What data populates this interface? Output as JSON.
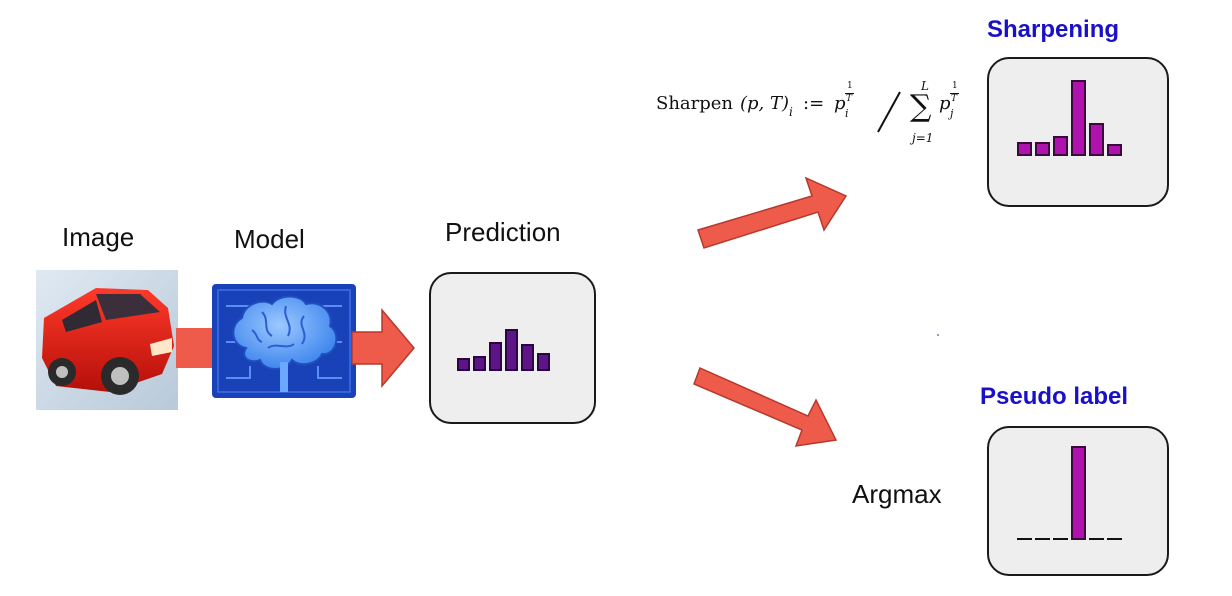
{
  "labels": {
    "image": "Image",
    "model": "Model",
    "prediction": "Prediction",
    "sharpening": "Sharpening",
    "pseudo_label": "Pseudo label",
    "argmax": "Argmax"
  },
  "formula": {
    "name": "Sharpen",
    "args": "(p, T)",
    "sub_i": "i",
    "assign": ":=",
    "p_var": "p",
    "exp_num": "1",
    "exp_den": "T",
    "slash": "/",
    "sum_sign": "∑",
    "sum_upper": "L",
    "sum_lower": "j=1",
    "sub_j": "j"
  },
  "colors": {
    "title_blue": "#1a10c8",
    "arrow_fill": "#ee5b4b",
    "arrow_stroke": "#b5392d",
    "bar_prediction_fill": "#5e1488",
    "bar_prediction_stroke": "#2a0640",
    "bar_sharp_fill": "#b012b0",
    "bar_sharp_stroke": "#3a0a3a",
    "card_bg": "#eeeeee",
    "model_bg": "#1942b8",
    "brain": "#6aa9ff"
  },
  "icons": {
    "image": "red-car-photo",
    "model": "brain-chip-icon"
  },
  "distributions": {
    "prediction": [
      0.3,
      0.36,
      0.68,
      1.0,
      0.64,
      0.42
    ],
    "sharpened": [
      0.19,
      0.19,
      0.26,
      1.0,
      0.44,
      0.16
    ],
    "pseudo_label": [
      0,
      0,
      0,
      1.0,
      0,
      0
    ]
  }
}
